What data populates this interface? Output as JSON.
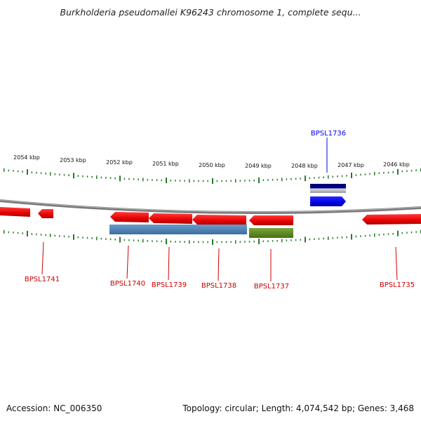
{
  "title": "Burkholderia pseudomallei K96243 chromosome 1, complete sequ...",
  "footer": {
    "accession": "Accession: NC_006350",
    "summary": "Topology: circular; Length: 4,074,542 bp; Genes: 3,468"
  },
  "colors": {
    "backbone": "#808080",
    "tick": "#2a7a2a",
    "gene_red": "#ee1111",
    "gene_label_red": "#cc0000",
    "highlight_blue": "#0000ee",
    "steel_blue": "#4f84b8",
    "olive_green": "#5f8a1f",
    "navy": "#000080"
  },
  "scale": {
    "unit": "kbp",
    "labels": [
      "2054 kbp",
      "2053 kbp",
      "2052 kbp",
      "2051 kbp",
      "2050 kbp",
      "2049 kbp",
      "2048 kbp",
      "2047 kbp",
      "2046 kbp"
    ]
  },
  "genes": [
    {
      "label": "BPSL1741",
      "color": "red",
      "highlight": false
    },
    {
      "label": "BPSL1740",
      "color": "red",
      "highlight": false
    },
    {
      "label": "BPSL1739",
      "color": "red",
      "highlight": false
    },
    {
      "label": "BPSL1738",
      "color": "red",
      "highlight": false
    },
    {
      "label": "BPSL1737",
      "color": "red",
      "highlight": false
    },
    {
      "label": "BPSL1736",
      "color": "blue",
      "highlight": true
    },
    {
      "label": "BPSL1735",
      "color": "red",
      "highlight": false
    }
  ]
}
